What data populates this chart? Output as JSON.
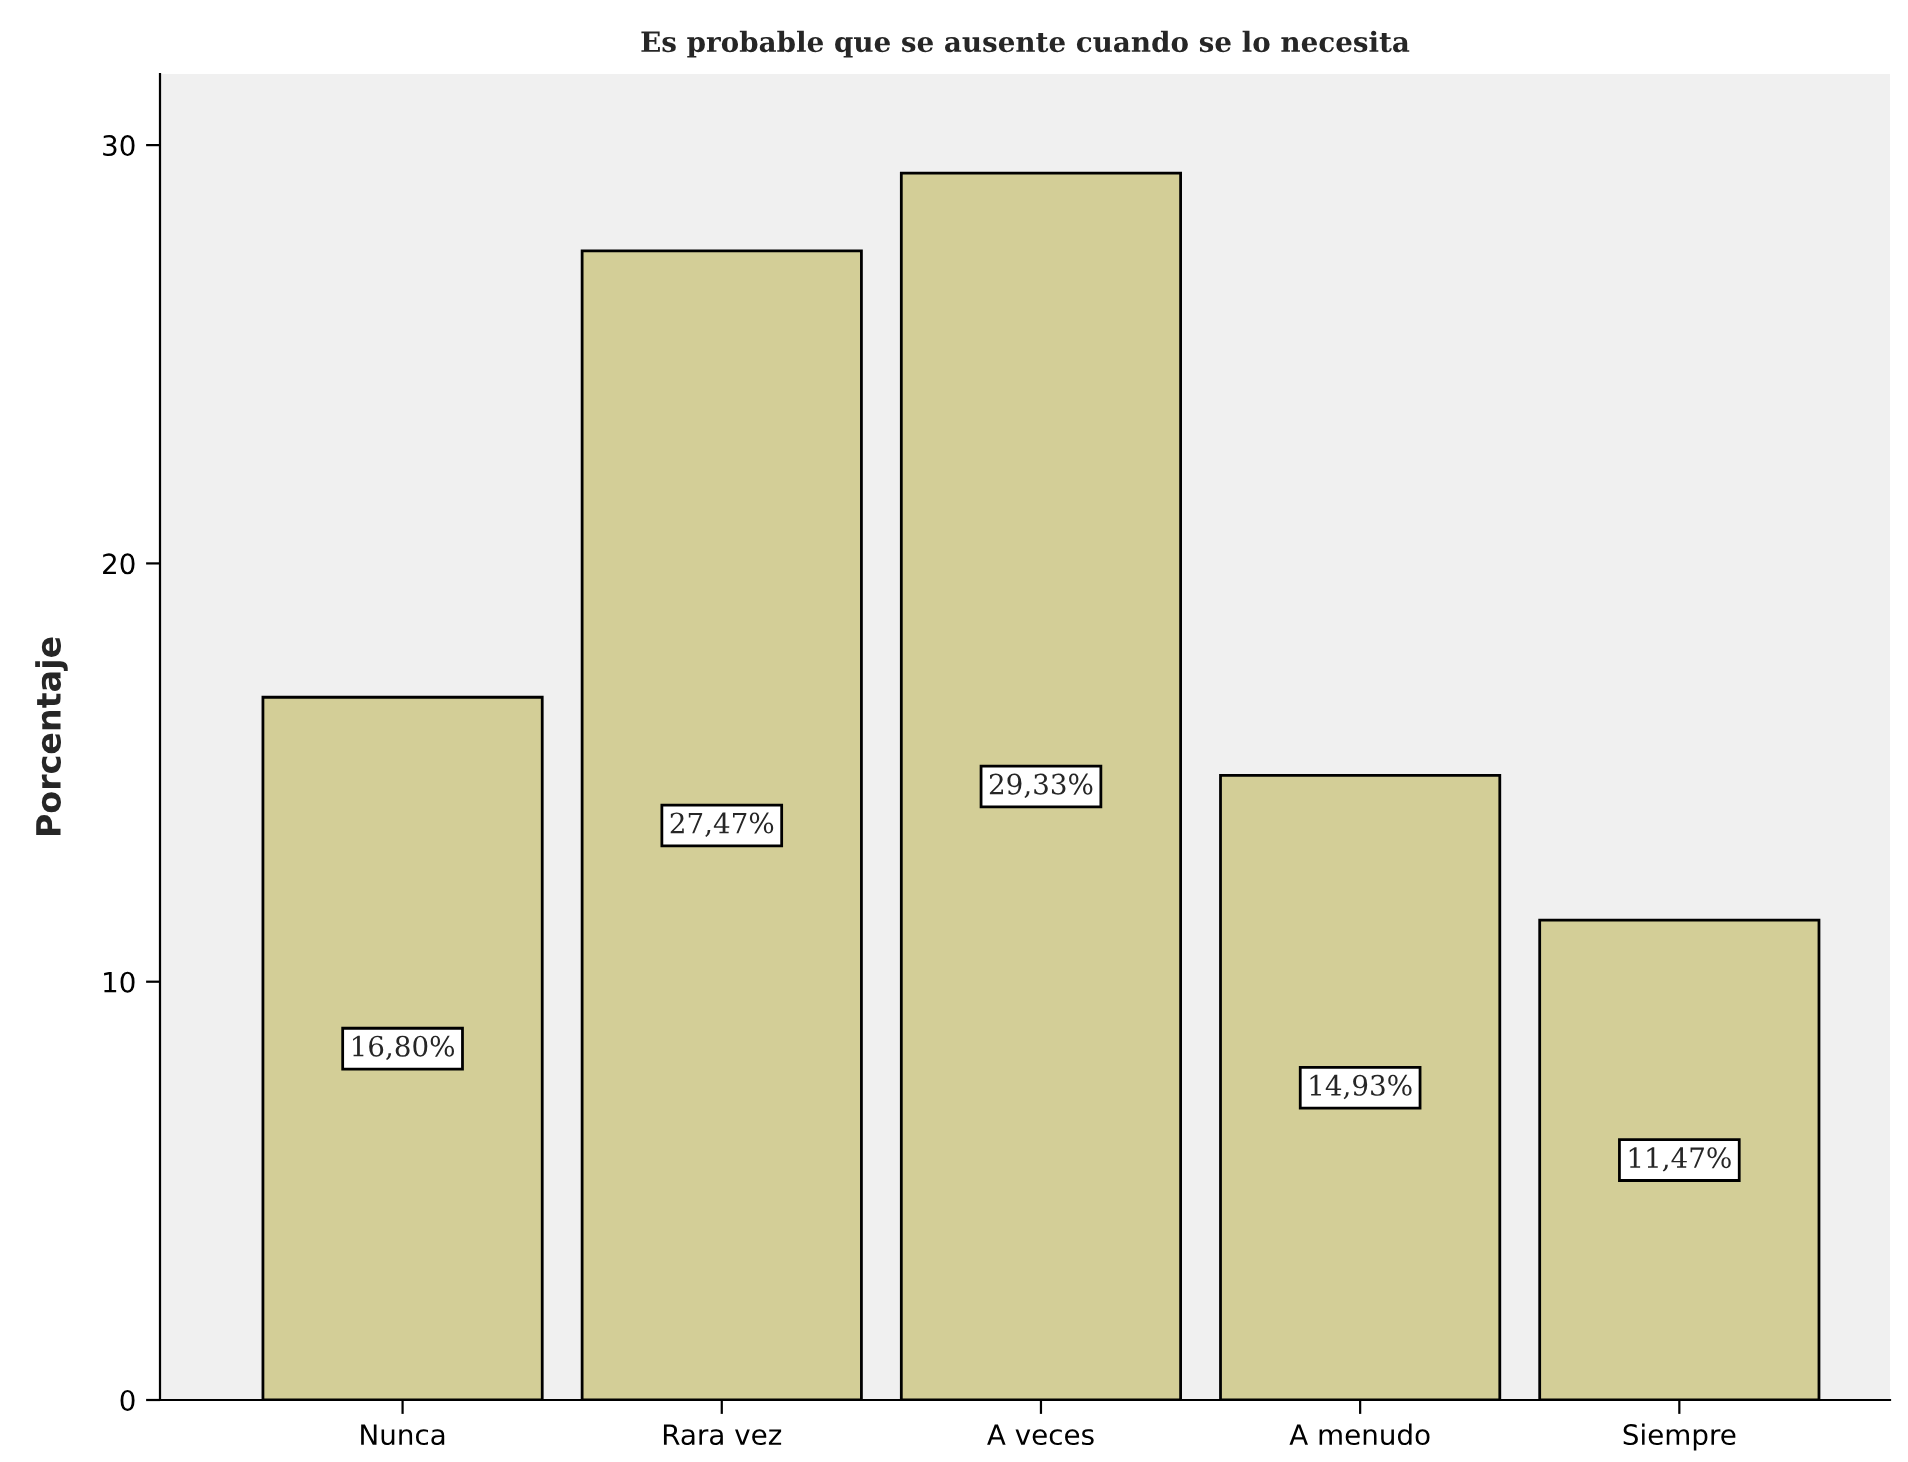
{
  "chart_data": {
    "type": "bar",
    "title": "Es probable que se ausente cuando se lo necesita",
    "ylabel": "Porcentaje",
    "categories": [
      "Nunca",
      "Rara vez",
      "A veces",
      "A menudo",
      "Siempre"
    ],
    "values": [
      16.8,
      27.47,
      29.33,
      14.93,
      11.47
    ],
    "value_labels": [
      "16,80%",
      "27,47%",
      "29,33%",
      "14,93%",
      "11,47%"
    ],
    "color": "#d3ce97",
    "ylim": [
      0,
      31.7
    ],
    "yticks": [
      0,
      10,
      20,
      30
    ],
    "grid": false,
    "legend": false
  }
}
